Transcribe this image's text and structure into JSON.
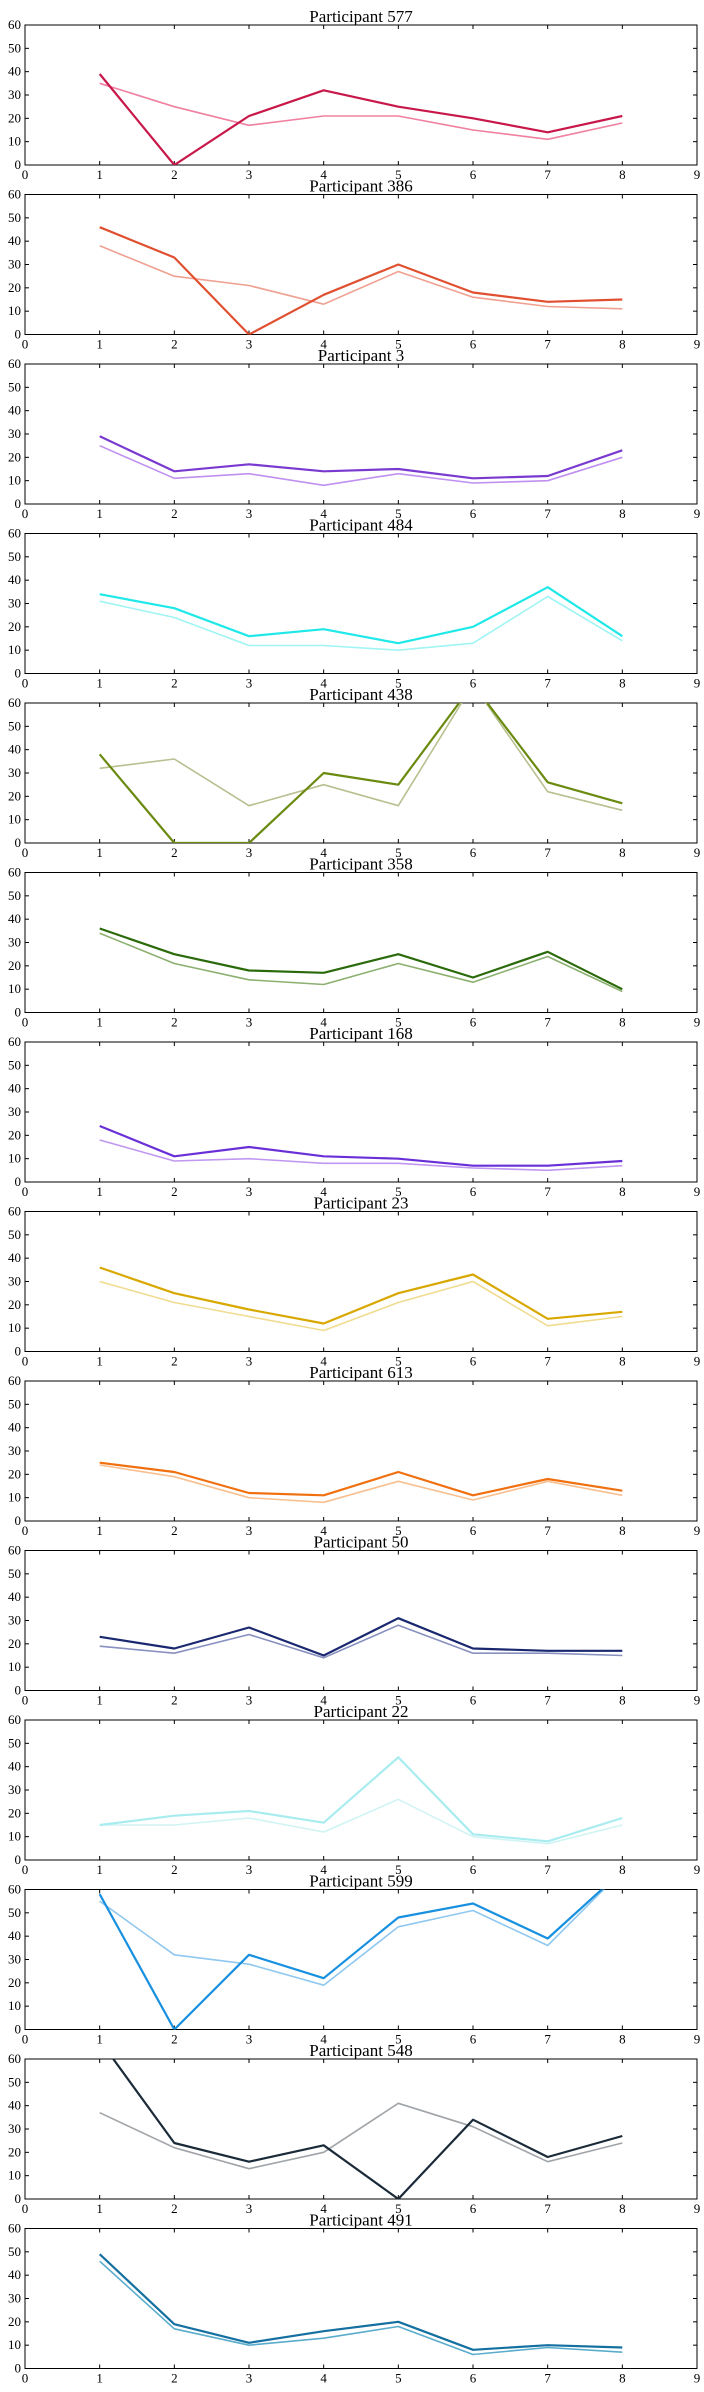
{
  "chart_data": [
    {
      "type": "line",
      "title": "Participant 577",
      "xlim": [
        0,
        9
      ],
      "ylim": [
        0,
        60
      ],
      "xticks": [
        0,
        1,
        2,
        3,
        4,
        5,
        6,
        7,
        8,
        9
      ],
      "yticks": [
        0,
        10,
        20,
        30,
        40,
        50,
        60
      ],
      "x": [
        1,
        2,
        3,
        4,
        5,
        6,
        7,
        8
      ],
      "series": [
        {
          "color": "#f080a0",
          "values": [
            35,
            25,
            17,
            21,
            21,
            15,
            11,
            18
          ]
        },
        {
          "color": "#c8184a",
          "values": [
            39,
            0,
            21,
            32,
            25,
            20,
            14,
            21
          ]
        }
      ]
    },
    {
      "type": "line",
      "title": "Participant 386",
      "xlim": [
        0,
        9
      ],
      "ylim": [
        0,
        60
      ],
      "xticks": [
        0,
        1,
        2,
        3,
        4,
        5,
        6,
        7,
        8,
        9
      ],
      "yticks": [
        0,
        10,
        20,
        30,
        40,
        50,
        60
      ],
      "x": [
        1,
        2,
        3,
        4,
        5,
        6,
        7,
        8
      ],
      "series": [
        {
          "color": "#f0a090",
          "values": [
            38,
            25,
            21,
            13,
            27,
            16,
            12,
            11
          ]
        },
        {
          "color": "#e05030",
          "values": [
            46,
            33,
            0,
            17,
            30,
            18,
            14,
            15
          ]
        }
      ]
    },
    {
      "type": "line",
      "title": "Participant 3",
      "xlim": [
        0,
        9
      ],
      "ylim": [
        0,
        60
      ],
      "xticks": [
        0,
        1,
        2,
        3,
        4,
        5,
        6,
        7,
        8,
        9
      ],
      "yticks": [
        0,
        10,
        20,
        30,
        40,
        50,
        60
      ],
      "x": [
        1,
        2,
        3,
        4,
        5,
        6,
        7,
        8
      ],
      "series": [
        {
          "color": "#c090f0",
          "values": [
            25,
            11,
            13,
            8,
            13,
            9,
            10,
            20
          ]
        },
        {
          "color": "#7a3ad0",
          "values": [
            29,
            14,
            17,
            14,
            15,
            11,
            12,
            23
          ]
        }
      ]
    },
    {
      "type": "line",
      "title": "Participant 484",
      "xlim": [
        0,
        9
      ],
      "ylim": [
        0,
        60
      ],
      "xticks": [
        0,
        1,
        2,
        3,
        4,
        5,
        6,
        7,
        8,
        9
      ],
      "yticks": [
        0,
        10,
        20,
        30,
        40,
        50,
        60
      ],
      "x": [
        1,
        2,
        3,
        4,
        5,
        6,
        7,
        8
      ],
      "series": [
        {
          "color": "#a0f4f4",
          "values": [
            31,
            24,
            12,
            12,
            10,
            13,
            33,
            14
          ]
        },
        {
          "color": "#20e8e8",
          "values": [
            34,
            28,
            16,
            19,
            13,
            20,
            37,
            16
          ]
        }
      ]
    },
    {
      "type": "line",
      "title": "Participant 438",
      "xlim": [
        0,
        9
      ],
      "ylim": [
        0,
        60
      ],
      "xticks": [
        0,
        1,
        2,
        3,
        4,
        5,
        6,
        7,
        8,
        9
      ],
      "yticks": [
        0,
        10,
        20,
        30,
        40,
        50,
        60
      ],
      "x": [
        1,
        2,
        3,
        4,
        5,
        6,
        7,
        8
      ],
      "series": [
        {
          "color": "#b8c090",
          "values": [
            32,
            36,
            16,
            25,
            16,
            68,
            22,
            14
          ]
        },
        {
          "color": "#6a8a10",
          "values": [
            38,
            0,
            0,
            30,
            25,
            68,
            26,
            17
          ]
        }
      ]
    },
    {
      "type": "line",
      "title": "Participant 358",
      "xlim": [
        0,
        9
      ],
      "ylim": [
        0,
        60
      ],
      "xticks": [
        0,
        1,
        2,
        3,
        4,
        5,
        6,
        7,
        8,
        9
      ],
      "yticks": [
        0,
        10,
        20,
        30,
        40,
        50,
        60
      ],
      "x": [
        1,
        2,
        3,
        4,
        5,
        6,
        7,
        8
      ],
      "series": [
        {
          "color": "#8cb070",
          "values": [
            34,
            21,
            14,
            12,
            21,
            13,
            24,
            9
          ]
        },
        {
          "color": "#2a6a0a",
          "values": [
            36,
            25,
            18,
            17,
            25,
            15,
            26,
            10
          ]
        }
      ]
    },
    {
      "type": "line",
      "title": "Participant 168",
      "xlim": [
        0,
        9
      ],
      "ylim": [
        0,
        60
      ],
      "xticks": [
        0,
        1,
        2,
        3,
        4,
        5,
        6,
        7,
        8,
        9
      ],
      "yticks": [
        0,
        10,
        20,
        30,
        40,
        50,
        60
      ],
      "x": [
        1,
        2,
        3,
        4,
        5,
        6,
        7,
        8
      ],
      "series": [
        {
          "color": "#c098f0",
          "values": [
            18,
            9,
            10,
            8,
            8,
            6,
            5,
            7
          ]
        },
        {
          "color": "#6a30d8",
          "values": [
            24,
            11,
            15,
            11,
            10,
            7,
            7,
            9
          ]
        }
      ]
    },
    {
      "type": "line",
      "title": "Participant 23",
      "xlim": [
        0,
        9
      ],
      "ylim": [
        0,
        60
      ],
      "xticks": [
        0,
        1,
        2,
        3,
        4,
        5,
        6,
        7,
        8,
        9
      ],
      "yticks": [
        0,
        10,
        20,
        30,
        40,
        50,
        60
      ],
      "x": [
        1,
        2,
        3,
        4,
        5,
        6,
        7,
        8
      ],
      "series": [
        {
          "color": "#f0dc90",
          "values": [
            30,
            21,
            15,
            9,
            21,
            30,
            11,
            15
          ]
        },
        {
          "color": "#d8a800",
          "values": [
            36,
            25,
            18,
            12,
            25,
            33,
            14,
            17
          ]
        }
      ]
    },
    {
      "type": "line",
      "title": "Participant 613",
      "xlim": [
        0,
        9
      ],
      "ylim": [
        0,
        60
      ],
      "xticks": [
        0,
        1,
        2,
        3,
        4,
        5,
        6,
        7,
        8,
        9
      ],
      "yticks": [
        0,
        10,
        20,
        30,
        40,
        50,
        60
      ],
      "x": [
        1,
        2,
        3,
        4,
        5,
        6,
        7,
        8
      ],
      "series": [
        {
          "color": "#f8c090",
          "values": [
            24,
            19,
            10,
            8,
            17,
            9,
            17,
            11
          ]
        },
        {
          "color": "#f07010",
          "values": [
            25,
            21,
            12,
            11,
            21,
            11,
            18,
            13
          ]
        }
      ]
    },
    {
      "type": "line",
      "title": "Participant 50",
      "xlim": [
        0,
        9
      ],
      "ylim": [
        0,
        60
      ],
      "xticks": [
        0,
        1,
        2,
        3,
        4,
        5,
        6,
        7,
        8,
        9
      ],
      "yticks": [
        0,
        10,
        20,
        30,
        40,
        50,
        60
      ],
      "x": [
        1,
        2,
        3,
        4,
        5,
        6,
        7,
        8
      ],
      "series": [
        {
          "color": "#8890c0",
          "values": [
            19,
            16,
            24,
            14,
            28,
            16,
            16,
            15
          ]
        },
        {
          "color": "#1a2870",
          "values": [
            23,
            18,
            27,
            15,
            31,
            18,
            17,
            17
          ]
        }
      ]
    },
    {
      "type": "line",
      "title": "Participant 22",
      "xlim": [
        0,
        9
      ],
      "ylim": [
        0,
        60
      ],
      "xticks": [
        0,
        1,
        2,
        3,
        4,
        5,
        6,
        7,
        8,
        9
      ],
      "yticks": [
        0,
        10,
        20,
        30,
        40,
        50,
        60
      ],
      "x": [
        1,
        2,
        3,
        4,
        5,
        6,
        7,
        8
      ],
      "series": [
        {
          "color": "#d0f4f4",
          "values": [
            15,
            15,
            18,
            12,
            26,
            10,
            7,
            15
          ]
        },
        {
          "color": "#a8ecf0",
          "values": [
            15,
            19,
            21,
            16,
            44,
            11,
            8,
            18
          ]
        }
      ]
    },
    {
      "type": "line",
      "title": "Participant 599",
      "xlim": [
        0,
        9
      ],
      "ylim": [
        0,
        60
      ],
      "xticks": [
        0,
        1,
        2,
        3,
        4,
        5,
        6,
        7,
        8,
        9
      ],
      "yticks": [
        0,
        10,
        20,
        30,
        40,
        50,
        60
      ],
      "x": [
        1,
        2,
        3,
        4,
        5,
        6,
        7,
        8
      ],
      "series": [
        {
          "color": "#90c8f0",
          "values": [
            55,
            32,
            28,
            19,
            44,
            51,
            36,
            68
          ]
        },
        {
          "color": "#1890e0",
          "values": [
            58,
            0,
            32,
            22,
            48,
            54,
            39,
            68
          ]
        }
      ]
    },
    {
      "type": "line",
      "title": "Participant 548",
      "xlim": [
        0,
        9
      ],
      "ylim": [
        0,
        60
      ],
      "xticks": [
        0,
        1,
        2,
        3,
        4,
        5,
        6,
        7,
        8,
        9
      ],
      "yticks": [
        0,
        10,
        20,
        30,
        40,
        50,
        60
      ],
      "x": [
        1,
        2,
        3,
        4,
        5,
        6,
        7,
        8
      ],
      "series": [
        {
          "color": "#a0a4a8",
          "values": [
            37,
            22,
            13,
            20,
            41,
            31,
            16,
            24
          ]
        },
        {
          "color": "#1a2a38",
          "values": [
            68,
            24,
            16,
            23,
            0,
            34,
            18,
            27
          ]
        }
      ]
    },
    {
      "type": "line",
      "title": "Participant 491",
      "xlim": [
        0,
        9
      ],
      "ylim": [
        0,
        60
      ],
      "xticks": [
        0,
        1,
        2,
        3,
        4,
        5,
        6,
        7,
        8,
        9
      ],
      "yticks": [
        0,
        10,
        20,
        30,
        40,
        50,
        60
      ],
      "x": [
        1,
        2,
        3,
        4,
        5,
        6,
        7,
        8
      ],
      "series": [
        {
          "color": "#5aaccc",
          "values": [
            46,
            17,
            10,
            13,
            18,
            6,
            9,
            7
          ]
        },
        {
          "color": "#1470a0",
          "values": [
            49,
            19,
            11,
            16,
            20,
            8,
            10,
            9
          ]
        }
      ]
    }
  ]
}
